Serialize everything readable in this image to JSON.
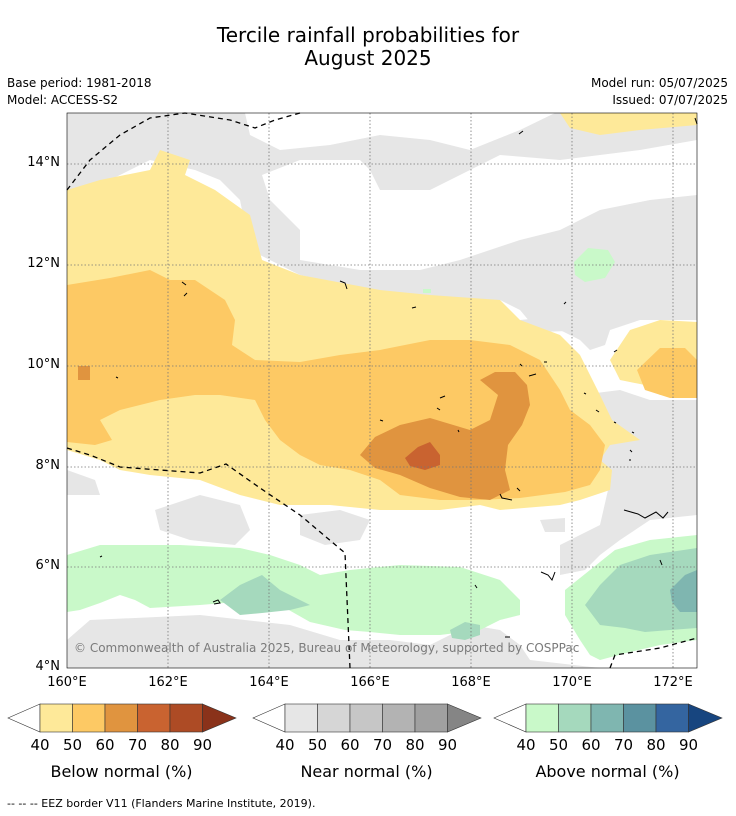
{
  "title_line1": "Tercile rainfall probabilities for",
  "title_line2": "August 2025",
  "base_period": "Base period: 1981-2018",
  "model": "Model: ACCESS-S2",
  "model_run": "Model run: 05/07/2025",
  "issued": "Issued: 07/07/2025",
  "copyright": "© Commonwealth of Australia 2025, Bureau of Meteorology, supported by COSPPac",
  "footer": "--  --  -- EEZ border V11 (Flanders Marine Institute, 2019).",
  "lat_labels": [
    "14°N",
    "12°N",
    "10°N",
    "8°N",
    "6°N",
    "4°N"
  ],
  "lon_labels": [
    "160°E",
    "162°E",
    "164°E",
    "166°E",
    "168°E",
    "170°E",
    "172°E"
  ],
  "colorbars": [
    {
      "label": "Below normal (%)",
      "ticks": [
        "40",
        "50",
        "60",
        "70",
        "80",
        "90"
      ],
      "colors": [
        "#fee999",
        "#fdc964",
        "#e0943f",
        "#c96330",
        "#ad4b25",
        "#8a321a"
      ]
    },
    {
      "label": "Near normal (%)",
      "ticks": [
        "40",
        "50",
        "60",
        "70",
        "80",
        "90"
      ],
      "colors": [
        "#e6e6e6",
        "#d6d6d6",
        "#c6c6c6",
        "#b3b3b3",
        "#a0a0a0",
        "#858585"
      ]
    },
    {
      "label": "Above normal (%)",
      "ticks": [
        "40",
        "50",
        "60",
        "70",
        "80",
        "90"
      ],
      "colors": [
        "#c9f9c9",
        "#a5d9bd",
        "#7fb6b0",
        "#5b92a0",
        "#3465a0",
        "#17457f"
      ]
    }
  ]
}
